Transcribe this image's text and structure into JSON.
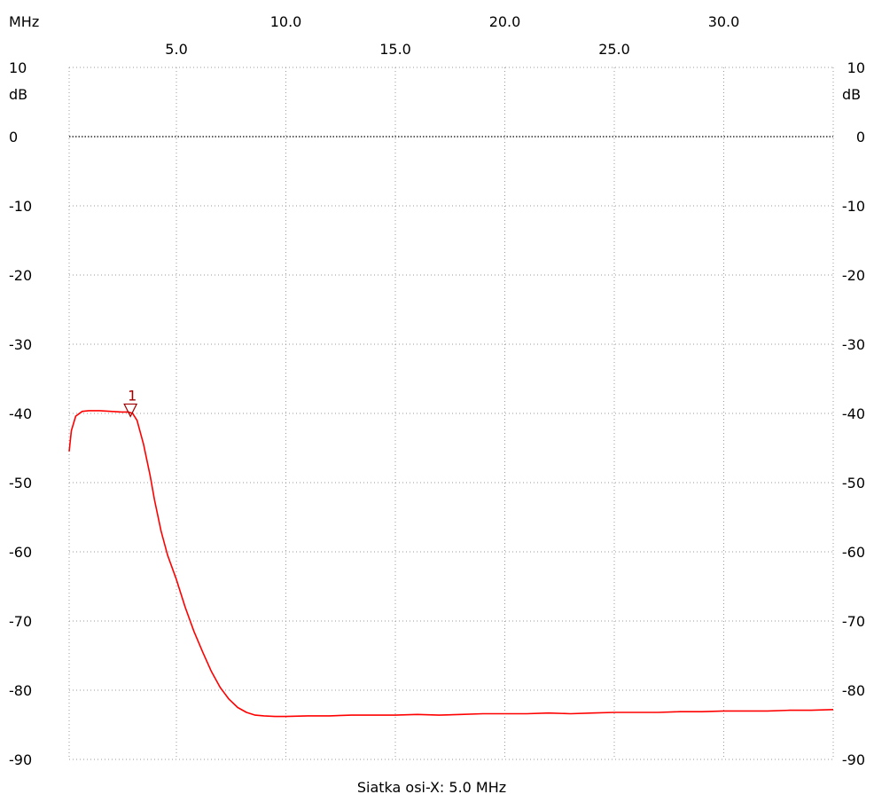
{
  "chart_data": {
    "type": "line",
    "x_unit": "MHz",
    "y_unit": "dB",
    "xlim": [
      0.1,
      35.0
    ],
    "ylim": [
      -90,
      10
    ],
    "x_ticks_upper": [
      10.0,
      20.0,
      30.0
    ],
    "x_ticks_lower": [
      5.0,
      15.0,
      25.0
    ],
    "x_tick_labels_upper": [
      "10.0",
      "20.0",
      "30.0"
    ],
    "x_tick_labels_lower": [
      "5.0",
      "15.0",
      "25.0"
    ],
    "y_ticks": [
      10,
      0,
      -10,
      -20,
      -30,
      -40,
      -50,
      -60,
      -70,
      -80,
      -90
    ],
    "y_tick_labels": [
      "10",
      "0",
      "-10",
      "-20",
      "-30",
      "-40",
      "-50",
      "-60",
      "-70",
      "-80",
      "-90"
    ],
    "grid": true,
    "footer": "Siatka osi-X: 5.0 MHz",
    "series": [
      {
        "color": "#ff0000",
        "x": [
          0.1,
          0.2,
          0.4,
          0.7,
          1.0,
          1.5,
          2.0,
          2.5,
          2.8,
          3.0,
          3.2,
          3.5,
          3.8,
          4.0,
          4.3,
          4.6,
          5.0,
          5.4,
          5.8,
          6.2,
          6.6,
          7.0,
          7.4,
          7.8,
          8.2,
          8.6,
          9.0,
          9.5,
          10.0,
          11.0,
          12.0,
          13.0,
          14.0,
          15.0,
          16.0,
          17.0,
          18.0,
          19.0,
          20.0,
          21.0,
          22.0,
          23.0,
          24.0,
          25.0,
          26.0,
          27.0,
          28.0,
          29.0,
          30.0,
          31.0,
          32.0,
          33.0,
          34.0,
          35.0
        ],
        "y": [
          -45.5,
          -42.5,
          -40.4,
          -39.7,
          -39.6,
          -39.6,
          -39.7,
          -39.8,
          -39.8,
          -40.0,
          -41.0,
          -44.5,
          -49.0,
          -52.5,
          -57.0,
          -60.5,
          -64.0,
          -68.0,
          -71.5,
          -74.5,
          -77.3,
          -79.6,
          -81.3,
          -82.5,
          -83.2,
          -83.6,
          -83.7,
          -83.8,
          -83.8,
          -83.7,
          -83.7,
          -83.6,
          -83.6,
          -83.6,
          -83.5,
          -83.6,
          -83.5,
          -83.4,
          -83.4,
          -83.4,
          -83.3,
          -83.4,
          -83.3,
          -83.2,
          -83.2,
          -83.2,
          -83.1,
          -83.1,
          -83.0,
          -83.0,
          -83.0,
          -82.9,
          -82.9,
          -82.8
        ]
      }
    ],
    "markers": [
      {
        "label": "1",
        "x": 2.9,
        "y": -39.8
      }
    ]
  }
}
